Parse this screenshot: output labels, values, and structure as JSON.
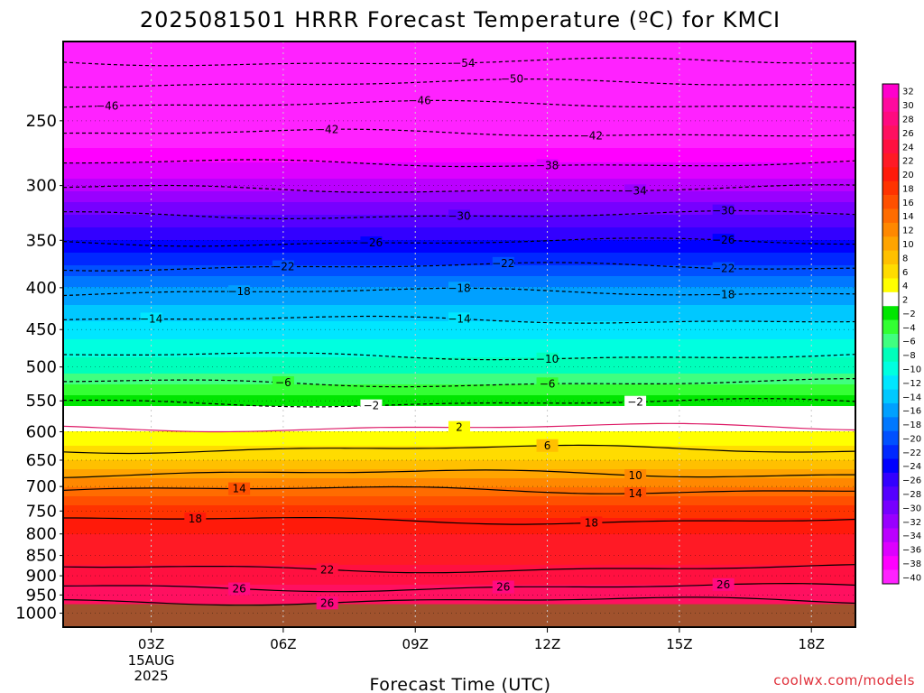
{
  "chart_data": {
    "type": "heatmap",
    "title": "2025081501 HRRR Forecast Temperature (ºC) for KMCI",
    "xlabel": "Forecast Time (UTC)",
    "ylabel": "",
    "x_ticks": [
      "03Z",
      "06Z",
      "09Z",
      "12Z",
      "15Z",
      "18Z"
    ],
    "x_date_lines": [
      "15AUG",
      "2025"
    ],
    "x_tick_hours": [
      3,
      6,
      9,
      12,
      15,
      18
    ],
    "xlim_hours": [
      1,
      19
    ],
    "y_axis": "pressure (hPa), log scale, inverted",
    "y_ticks": [
      250,
      300,
      350,
      400,
      450,
      500,
      550,
      600,
      650,
      700,
      750,
      800,
      850,
      900,
      950,
      1000
    ],
    "ylim": [
      200,
      1040
    ],
    "surface_pressure": 975,
    "temperature_profile": [
      {
        "p": 200,
        "t": -56
      },
      {
        "p": 225,
        "t": -47
      },
      {
        "p": 250,
        "t": -44
      },
      {
        "p": 275,
        "t": -39
      },
      {
        "p": 300,
        "t": -35
      },
      {
        "p": 325,
        "t": -30
      },
      {
        "p": 350,
        "t": -26
      },
      {
        "p": 375,
        "t": -22
      },
      {
        "p": 400,
        "t": -18
      },
      {
        "p": 425,
        "t": -15.5
      },
      {
        "p": 450,
        "t": -13
      },
      {
        "p": 475,
        "t": -11
      },
      {
        "p": 500,
        "t": -9
      },
      {
        "p": 525,
        "t": -6
      },
      {
        "p": 550,
        "t": -3
      },
      {
        "p": 575,
        "t": 0
      },
      {
        "p": 600,
        "t": 2
      },
      {
        "p": 650,
        "t": 6
      },
      {
        "p": 700,
        "t": 12
      },
      {
        "p": 750,
        "t": 17
      },
      {
        "p": 800,
        "t": 20
      },
      {
        "p": 850,
        "t": 21
      },
      {
        "p": 900,
        "t": 23
      },
      {
        "p": 950,
        "t": 25
      },
      {
        "p": 975,
        "t": 26
      }
    ],
    "contours": [
      {
        "value": -54,
        "p": 212,
        "dashed": true,
        "label_hours": [
          10.1
        ]
      },
      {
        "value": -50,
        "p": 225,
        "dashed": true,
        "label_hours": [
          11.2
        ]
      },
      {
        "value": -46,
        "p": 239,
        "dashed": true,
        "label_hours": [
          2,
          9.1
        ]
      },
      {
        "value": -42,
        "p": 259,
        "dashed": true,
        "label_hours": [
          7,
          13
        ]
      },
      {
        "value": -38,
        "p": 282,
        "dashed": true,
        "label_hours": [
          12
        ]
      },
      {
        "value": -34,
        "p": 303,
        "dashed": true,
        "label_hours": [
          14
        ]
      },
      {
        "value": -30,
        "p": 326,
        "dashed": true,
        "label_hours": [
          10,
          16
        ]
      },
      {
        "value": -26,
        "p": 352,
        "dashed": true,
        "label_hours": [
          8,
          16
        ]
      },
      {
        "value": -22,
        "p": 377,
        "dashed": true,
        "label_hours": [
          6,
          11,
          16
        ]
      },
      {
        "value": -18,
        "p": 405,
        "dashed": true,
        "label_hours": [
          5,
          10,
          16
        ]
      },
      {
        "value": -14,
        "p": 438,
        "dashed": true,
        "label_hours": [
          3,
          10
        ]
      },
      {
        "value": -10,
        "p": 485,
        "dashed": true,
        "label_hours": [
          12
        ]
      },
      {
        "value": -6,
        "p": 523,
        "dashed": true,
        "label_hours": [
          6,
          12
        ]
      },
      {
        "value": -2,
        "p": 553,
        "dashed": true,
        "label_hours": [
          8,
          14
        ]
      },
      {
        "value": 2,
        "p": 593,
        "dashed": false,
        "label_hours": [
          10
        ]
      },
      {
        "value": 6,
        "p": 630,
        "dashed": false,
        "label_hours": [
          12
        ]
      },
      {
        "value": 10,
        "p": 675,
        "dashed": false,
        "label_hours": [
          14
        ]
      },
      {
        "value": 14,
        "p": 707,
        "dashed": false,
        "label_hours": [
          5,
          14
        ]
      },
      {
        "value": 18,
        "p": 770,
        "dashed": false,
        "label_hours": [
          4,
          13
        ]
      },
      {
        "value": 22,
        "p": 882,
        "dashed": false,
        "label_hours": [
          7
        ]
      },
      {
        "value": 26,
        "p": 930,
        "dashed": false,
        "label_hours": [
          5,
          11,
          16
        ]
      },
      {
        "value": 26,
        "p": 966,
        "dashed": false,
        "label_hours": [
          7
        ]
      }
    ],
    "colorbar": {
      "labels": [
        "32",
        "30",
        "28",
        "26",
        "24",
        "22",
        "20",
        "18",
        "16",
        "14",
        "12",
        "10",
        "8",
        "6",
        "4",
        "2",
        "−2",
        "−4",
        "−6",
        "−8",
        "−10",
        "−12",
        "−14",
        "−16",
        "−18",
        "−20",
        "−22",
        "−24",
        "−26",
        "−28",
        "−30",
        "−32",
        "−34",
        "−36",
        "−38",
        "−40"
      ],
      "colors": [
        "#ff00cc",
        "#ff0a9e",
        "#ff0a80",
        "#ff1060",
        "#ff1040",
        "#ff1a25",
        "#ff1a0a",
        "#ff3300",
        "#ff5000",
        "#ff6c00",
        "#ff8800",
        "#ffa400",
        "#ffc000",
        "#ffdc00",
        "#ffff00",
        "#ffffff",
        "#00e600",
        "#33ff33",
        "#40ff80",
        "#00ffbb",
        "#00ffe0",
        "#00e6ff",
        "#00c8ff",
        "#00a0ff",
        "#0078ff",
        "#0050ff",
        "#0028ff",
        "#0000ff",
        "#3300ff",
        "#5500ff",
        "#7700ff",
        "#9900ff",
        "#bb00ff",
        "#dd00ff",
        "#ff00ff",
        "#ff22ff"
      ]
    },
    "ground_color": "#a0522d",
    "grid": true
  },
  "watermark": "coolwx.com/models"
}
